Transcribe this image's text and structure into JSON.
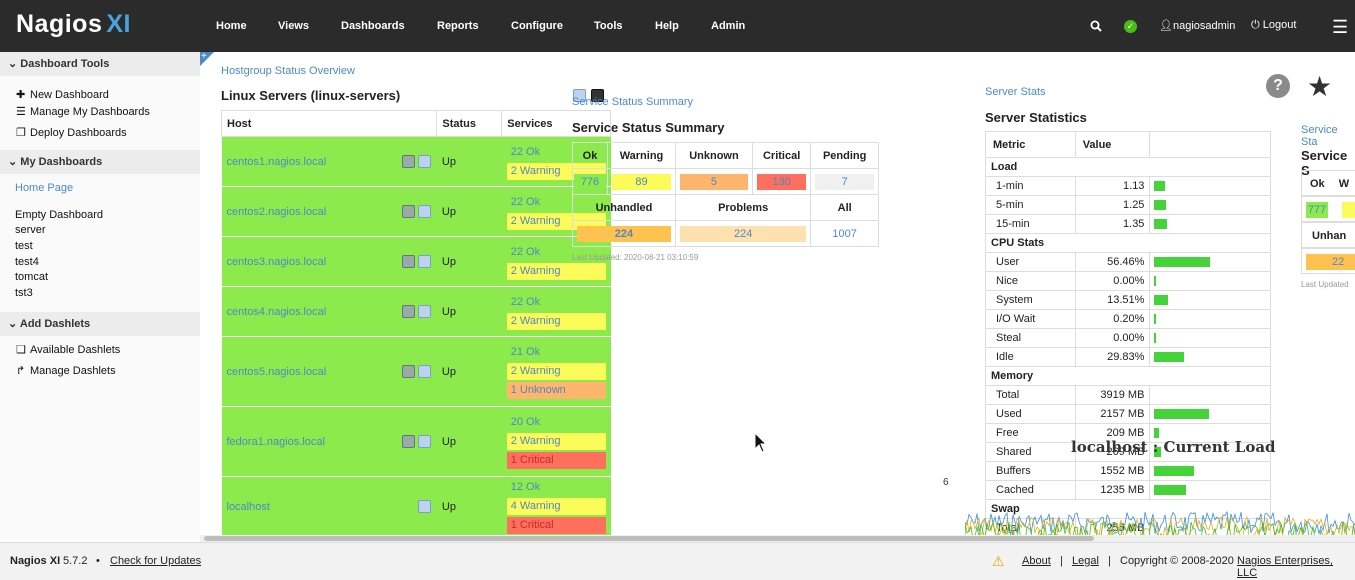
{
  "app": {
    "logo_text": "Nagios",
    "logo_xi": "XI"
  },
  "nav": [
    {
      "label": "Home"
    },
    {
      "label": "Views"
    },
    {
      "label": "Dashboards"
    },
    {
      "label": "Reports"
    },
    {
      "label": "Configure"
    },
    {
      "label": "Tools"
    },
    {
      "label": "Help"
    },
    {
      "label": "Admin"
    }
  ],
  "topright": {
    "user": "nagiosadmin",
    "logout": "Logout"
  },
  "sidebar": {
    "dashboard_tools": {
      "heading": "Dashboard Tools",
      "items": [
        "New Dashboard",
        "Manage My Dashboards",
        "Deploy Dashboards"
      ]
    },
    "my_dashboards": {
      "heading": "My Dashboards",
      "home": "Home Page",
      "items": [
        "Empty Dashboard",
        "server",
        "test",
        "test4",
        "tomcat",
        "tst3"
      ]
    },
    "add_dashlets": {
      "heading": "Add Dashlets",
      "items": [
        "Available Dashlets",
        "Manage Dashlets"
      ]
    }
  },
  "hostgroup": {
    "link": "Hostgroup Status Overview",
    "title": "Linux Servers (linux-servers)",
    "headers": [
      "Host",
      "Status",
      "Services"
    ],
    "rows": [
      {
        "host": "centos1.nagios.local",
        "status": "Up",
        "services": [
          {
            "t": "22 Ok",
            "k": "ok"
          },
          {
            "t": "2 Warning",
            "k": "warn"
          }
        ]
      },
      {
        "host": "centos2.nagios.local",
        "status": "Up",
        "services": [
          {
            "t": "22 Ok",
            "k": "ok"
          },
          {
            "t": "2 Warning",
            "k": "warn"
          }
        ]
      },
      {
        "host": "centos3.nagios.local",
        "status": "Up",
        "services": [
          {
            "t": "22 Ok",
            "k": "ok"
          },
          {
            "t": "2 Warning",
            "k": "warn"
          }
        ]
      },
      {
        "host": "centos4.nagios.local",
        "status": "Up",
        "services": [
          {
            "t": "22 Ok",
            "k": "ok"
          },
          {
            "t": "2 Warning",
            "k": "warn"
          }
        ]
      },
      {
        "host": "centos5.nagios.local",
        "status": "Up",
        "services": [
          {
            "t": "21 Ok",
            "k": "ok"
          },
          {
            "t": "2 Warning",
            "k": "warn"
          },
          {
            "t": "1 Unknown",
            "k": "unk"
          }
        ]
      },
      {
        "host": "fedora1.nagios.local",
        "status": "Up",
        "services": [
          {
            "t": "20 Ok",
            "k": "ok"
          },
          {
            "t": "2 Warning",
            "k": "warn"
          },
          {
            "t": "1 Critical",
            "k": "crit"
          }
        ]
      },
      {
        "host": "localhost",
        "status": "Up",
        "services": [
          {
            "t": "12 Ok",
            "k": "ok"
          },
          {
            "t": "4 Warning",
            "k": "warn"
          },
          {
            "t": "1 Critical",
            "k": "crit"
          }
        ]
      }
    ]
  },
  "service_summary": {
    "link": "Service Status Summary",
    "title": "Service Status Summary",
    "headers": [
      "Ok",
      "Warning",
      "Unknown",
      "Critical",
      "Pending"
    ],
    "values": [
      "776",
      "89",
      "5",
      "130",
      "7"
    ],
    "headers2": [
      "Unhandled",
      "Problems",
      "All"
    ],
    "values2": [
      "224",
      "224",
      "1007"
    ],
    "updated": "Last Updated: 2020-08-21 03:10:59"
  },
  "service_summary2": {
    "link": "Service Sta",
    "title": "Service S",
    "h_ok": "Ok",
    "h_w": "W",
    "v_ok": "777",
    "unh": "Unhan",
    "unh_v": "22",
    "updated": "Last Updated"
  },
  "server_stats": {
    "link": "Server Stats",
    "title": "Server Statistics",
    "headers": [
      "Metric",
      "Value"
    ],
    "sections": [
      {
        "name": "Load",
        "rows": [
          {
            "m": "1-min",
            "v": "1.13",
            "pct": 0.11
          },
          {
            "m": "5-min",
            "v": "1.25",
            "pct": 0.12
          },
          {
            "m": "15-min",
            "v": "1.35",
            "pct": 0.13
          }
        ]
      },
      {
        "name": "CPU Stats",
        "rows": [
          {
            "m": "User",
            "v": "56.46%",
            "pct": 0.56
          },
          {
            "m": "Nice",
            "v": "0.00%",
            "pct": 0.01
          },
          {
            "m": "System",
            "v": "13.51%",
            "pct": 0.14
          },
          {
            "m": "I/O Wait",
            "v": "0.20%",
            "pct": 0.01
          },
          {
            "m": "Steal",
            "v": "0.00%",
            "pct": 0.01
          },
          {
            "m": "Idle",
            "v": "29.83%",
            "pct": 0.3
          }
        ]
      },
      {
        "name": "Memory",
        "rows": [
          {
            "m": "Total",
            "v": "3919 MB",
            "pct": 0
          },
          {
            "m": "Used",
            "v": "2157 MB",
            "pct": 0.55
          },
          {
            "m": "Free",
            "v": "209 MB",
            "pct": 0.05
          },
          {
            "m": "Shared",
            "v": "269 MB",
            "pct": 0.07
          },
          {
            "m": "Buffers",
            "v": "1552 MB",
            "pct": 0.4
          },
          {
            "m": "Cached",
            "v": "1235 MB",
            "pct": 0.32
          }
        ]
      },
      {
        "name": "Swap",
        "rows": [
          {
            "m": "Total",
            "v": "255 MB",
            "pct": 0
          }
        ]
      }
    ]
  },
  "graph": {
    "title": "localhost : Current Load",
    "ytick": "6"
  },
  "footer": {
    "product": "Nagios XI",
    "version": "5.7.2",
    "updates": "Check for Updates",
    "about": "About",
    "legal": "Legal",
    "copyright": "Copyright © 2008-2020",
    "company": "Nagios Enterprises, LLC"
  },
  "colors": {
    "ok": "#8dea4c",
    "warning": "#fbfb5a",
    "unknown": "#ffb56e",
    "critical": "#ff6f5d",
    "link": "#4d89c8"
  }
}
